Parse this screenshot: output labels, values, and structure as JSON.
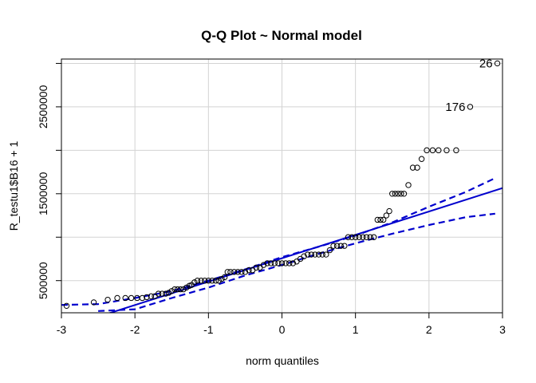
{
  "chart_data": {
    "type": "scatter",
    "title": "Q-Q Plot ~ Normal model",
    "xlabel": "norm quantiles",
    "ylabel": "R_testu1$B16 + 1",
    "xlim": [
      -3.0,
      3.0
    ],
    "ylim": [
      130000.0,
      3050000.0
    ],
    "x_ticks": [
      -3,
      -2,
      -1,
      0,
      1,
      2,
      3
    ],
    "x_tick_labels": [
      "-3",
      "-2",
      "-1",
      "0",
      "1",
      "2",
      "3"
    ],
    "y_ticks": [
      500000,
      1500000,
      2500000
    ],
    "y_tick_labels": [
      "500000",
      "1500000",
      "2500000"
    ],
    "grid": true,
    "colors": {
      "line": "#0000cd",
      "points": "#000000",
      "grid": "#d3d3d3"
    },
    "points": [
      {
        "x": -2.93,
        "y": 210000
      },
      {
        "x": -2.56,
        "y": 250000
      },
      {
        "x": -2.37,
        "y": 280000
      },
      {
        "x": -2.24,
        "y": 300000
      },
      {
        "x": -2.13,
        "y": 300000
      },
      {
        "x": -2.05,
        "y": 300000
      },
      {
        "x": -1.97,
        "y": 300000
      },
      {
        "x": -1.9,
        "y": 300000
      },
      {
        "x": -1.84,
        "y": 310000
      },
      {
        "x": -1.78,
        "y": 320000
      },
      {
        "x": -1.73,
        "y": 320000
      },
      {
        "x": -1.68,
        "y": 350000
      },
      {
        "x": -1.63,
        "y": 350000
      },
      {
        "x": -1.58,
        "y": 350000
      },
      {
        "x": -1.54,
        "y": 360000
      },
      {
        "x": -1.5,
        "y": 380000
      },
      {
        "x": -1.46,
        "y": 400000
      },
      {
        "x": -1.42,
        "y": 400000
      },
      {
        "x": -1.38,
        "y": 400000
      },
      {
        "x": -1.34,
        "y": 400000
      },
      {
        "x": -1.3,
        "y": 420000
      },
      {
        "x": -1.26,
        "y": 440000
      },
      {
        "x": -1.23,
        "y": 450000
      },
      {
        "x": -1.19,
        "y": 480000
      },
      {
        "x": -1.15,
        "y": 500000
      },
      {
        "x": -1.1,
        "y": 500000
      },
      {
        "x": -1.05,
        "y": 500000
      },
      {
        "x": -1.0,
        "y": 500000
      },
      {
        "x": -0.95,
        "y": 500000
      },
      {
        "x": -0.9,
        "y": 500000
      },
      {
        "x": -0.86,
        "y": 500000
      },
      {
        "x": -0.82,
        "y": 520000
      },
      {
        "x": -0.78,
        "y": 540000
      },
      {
        "x": -0.74,
        "y": 600000
      },
      {
        "x": -0.7,
        "y": 600000
      },
      {
        "x": -0.65,
        "y": 600000
      },
      {
        "x": -0.6,
        "y": 600000
      },
      {
        "x": -0.55,
        "y": 600000
      },
      {
        "x": -0.5,
        "y": 600000
      },
      {
        "x": -0.45,
        "y": 620000
      },
      {
        "x": -0.4,
        "y": 620000
      },
      {
        "x": -0.35,
        "y": 650000
      },
      {
        "x": -0.3,
        "y": 650000
      },
      {
        "x": -0.25,
        "y": 680000
      },
      {
        "x": -0.2,
        "y": 700000
      },
      {
        "x": -0.15,
        "y": 700000
      },
      {
        "x": -0.1,
        "y": 700000
      },
      {
        "x": -0.05,
        "y": 700000
      },
      {
        "x": 0.0,
        "y": 700000
      },
      {
        "x": 0.05,
        "y": 700000
      },
      {
        "x": 0.1,
        "y": 700000
      },
      {
        "x": 0.15,
        "y": 700000
      },
      {
        "x": 0.2,
        "y": 720000
      },
      {
        "x": 0.25,
        "y": 750000
      },
      {
        "x": 0.3,
        "y": 780000
      },
      {
        "x": 0.35,
        "y": 800000
      },
      {
        "x": 0.4,
        "y": 800000
      },
      {
        "x": 0.45,
        "y": 800000
      },
      {
        "x": 0.5,
        "y": 800000
      },
      {
        "x": 0.55,
        "y": 800000
      },
      {
        "x": 0.6,
        "y": 800000
      },
      {
        "x": 0.65,
        "y": 850000
      },
      {
        "x": 0.7,
        "y": 900000
      },
      {
        "x": 0.75,
        "y": 900000
      },
      {
        "x": 0.8,
        "y": 900000
      },
      {
        "x": 0.85,
        "y": 900000
      },
      {
        "x": 0.9,
        "y": 1000000
      },
      {
        "x": 0.95,
        "y": 1000000
      },
      {
        "x": 1.0,
        "y": 1000000
      },
      {
        "x": 1.05,
        "y": 1000000
      },
      {
        "x": 1.1,
        "y": 1000000
      },
      {
        "x": 1.15,
        "y": 1000000
      },
      {
        "x": 1.2,
        "y": 1000000
      },
      {
        "x": 1.25,
        "y": 1000000
      },
      {
        "x": 1.3,
        "y": 1200000
      },
      {
        "x": 1.34,
        "y": 1200000
      },
      {
        "x": 1.38,
        "y": 1200000
      },
      {
        "x": 1.42,
        "y": 1250000
      },
      {
        "x": 1.46,
        "y": 1300000
      },
      {
        "x": 1.5,
        "y": 1500000
      },
      {
        "x": 1.54,
        "y": 1500000
      },
      {
        "x": 1.58,
        "y": 1500000
      },
      {
        "x": 1.62,
        "y": 1500000
      },
      {
        "x": 1.66,
        "y": 1500000
      },
      {
        "x": 1.72,
        "y": 1600000
      },
      {
        "x": 1.78,
        "y": 1800000
      },
      {
        "x": 1.84,
        "y": 1800000
      },
      {
        "x": 1.9,
        "y": 1900000
      },
      {
        "x": 1.97,
        "y": 2000000
      },
      {
        "x": 2.05,
        "y": 2000000
      },
      {
        "x": 2.13,
        "y": 2000000
      },
      {
        "x": 2.24,
        "y": 2000000
      },
      {
        "x": 2.37,
        "y": 2000000
      },
      {
        "x": 2.56,
        "y": 2500000
      },
      {
        "x": 2.93,
        "y": 3000000
      }
    ],
    "qq_line": {
      "x1": -3.0,
      "y1": -50000,
      "x2": 3.0,
      "y2": 1565000
    },
    "confidence_band": {
      "upper": [
        {
          "x": -3.0,
          "y": 220000
        },
        {
          "x": -2.5,
          "y": 230000
        },
        {
          "x": -2.0,
          "y": 300000
        },
        {
          "x": -1.5,
          "y": 380000
        },
        {
          "x": -1.0,
          "y": 500000
        },
        {
          "x": -0.5,
          "y": 630000
        },
        {
          "x": 0.0,
          "y": 770000
        },
        {
          "x": 0.5,
          "y": 890000
        },
        {
          "x": 1.0,
          "y": 1020000
        },
        {
          "x": 1.5,
          "y": 1170000
        },
        {
          "x": 2.0,
          "y": 1350000
        },
        {
          "x": 2.5,
          "y": 1520000
        },
        {
          "x": 2.9,
          "y": 1680000
        }
      ],
      "lower": [
        {
          "x": -2.5,
          "y": 150000
        },
        {
          "x": -2.0,
          "y": 170000
        },
        {
          "x": -1.5,
          "y": 300000
        },
        {
          "x": -1.0,
          "y": 420000
        },
        {
          "x": -0.5,
          "y": 560000
        },
        {
          "x": 0.0,
          "y": 680000
        },
        {
          "x": 0.5,
          "y": 810000
        },
        {
          "x": 1.0,
          "y": 930000
        },
        {
          "x": 1.5,
          "y": 1040000
        },
        {
          "x": 2.0,
          "y": 1140000
        },
        {
          "x": 2.5,
          "y": 1230000
        },
        {
          "x": 2.9,
          "y": 1270000
        }
      ]
    },
    "annotations": [
      {
        "text": "26",
        "x": 2.93,
        "y": 3000000
      },
      {
        "text": "176",
        "x": 2.56,
        "y": 2500000
      }
    ]
  }
}
